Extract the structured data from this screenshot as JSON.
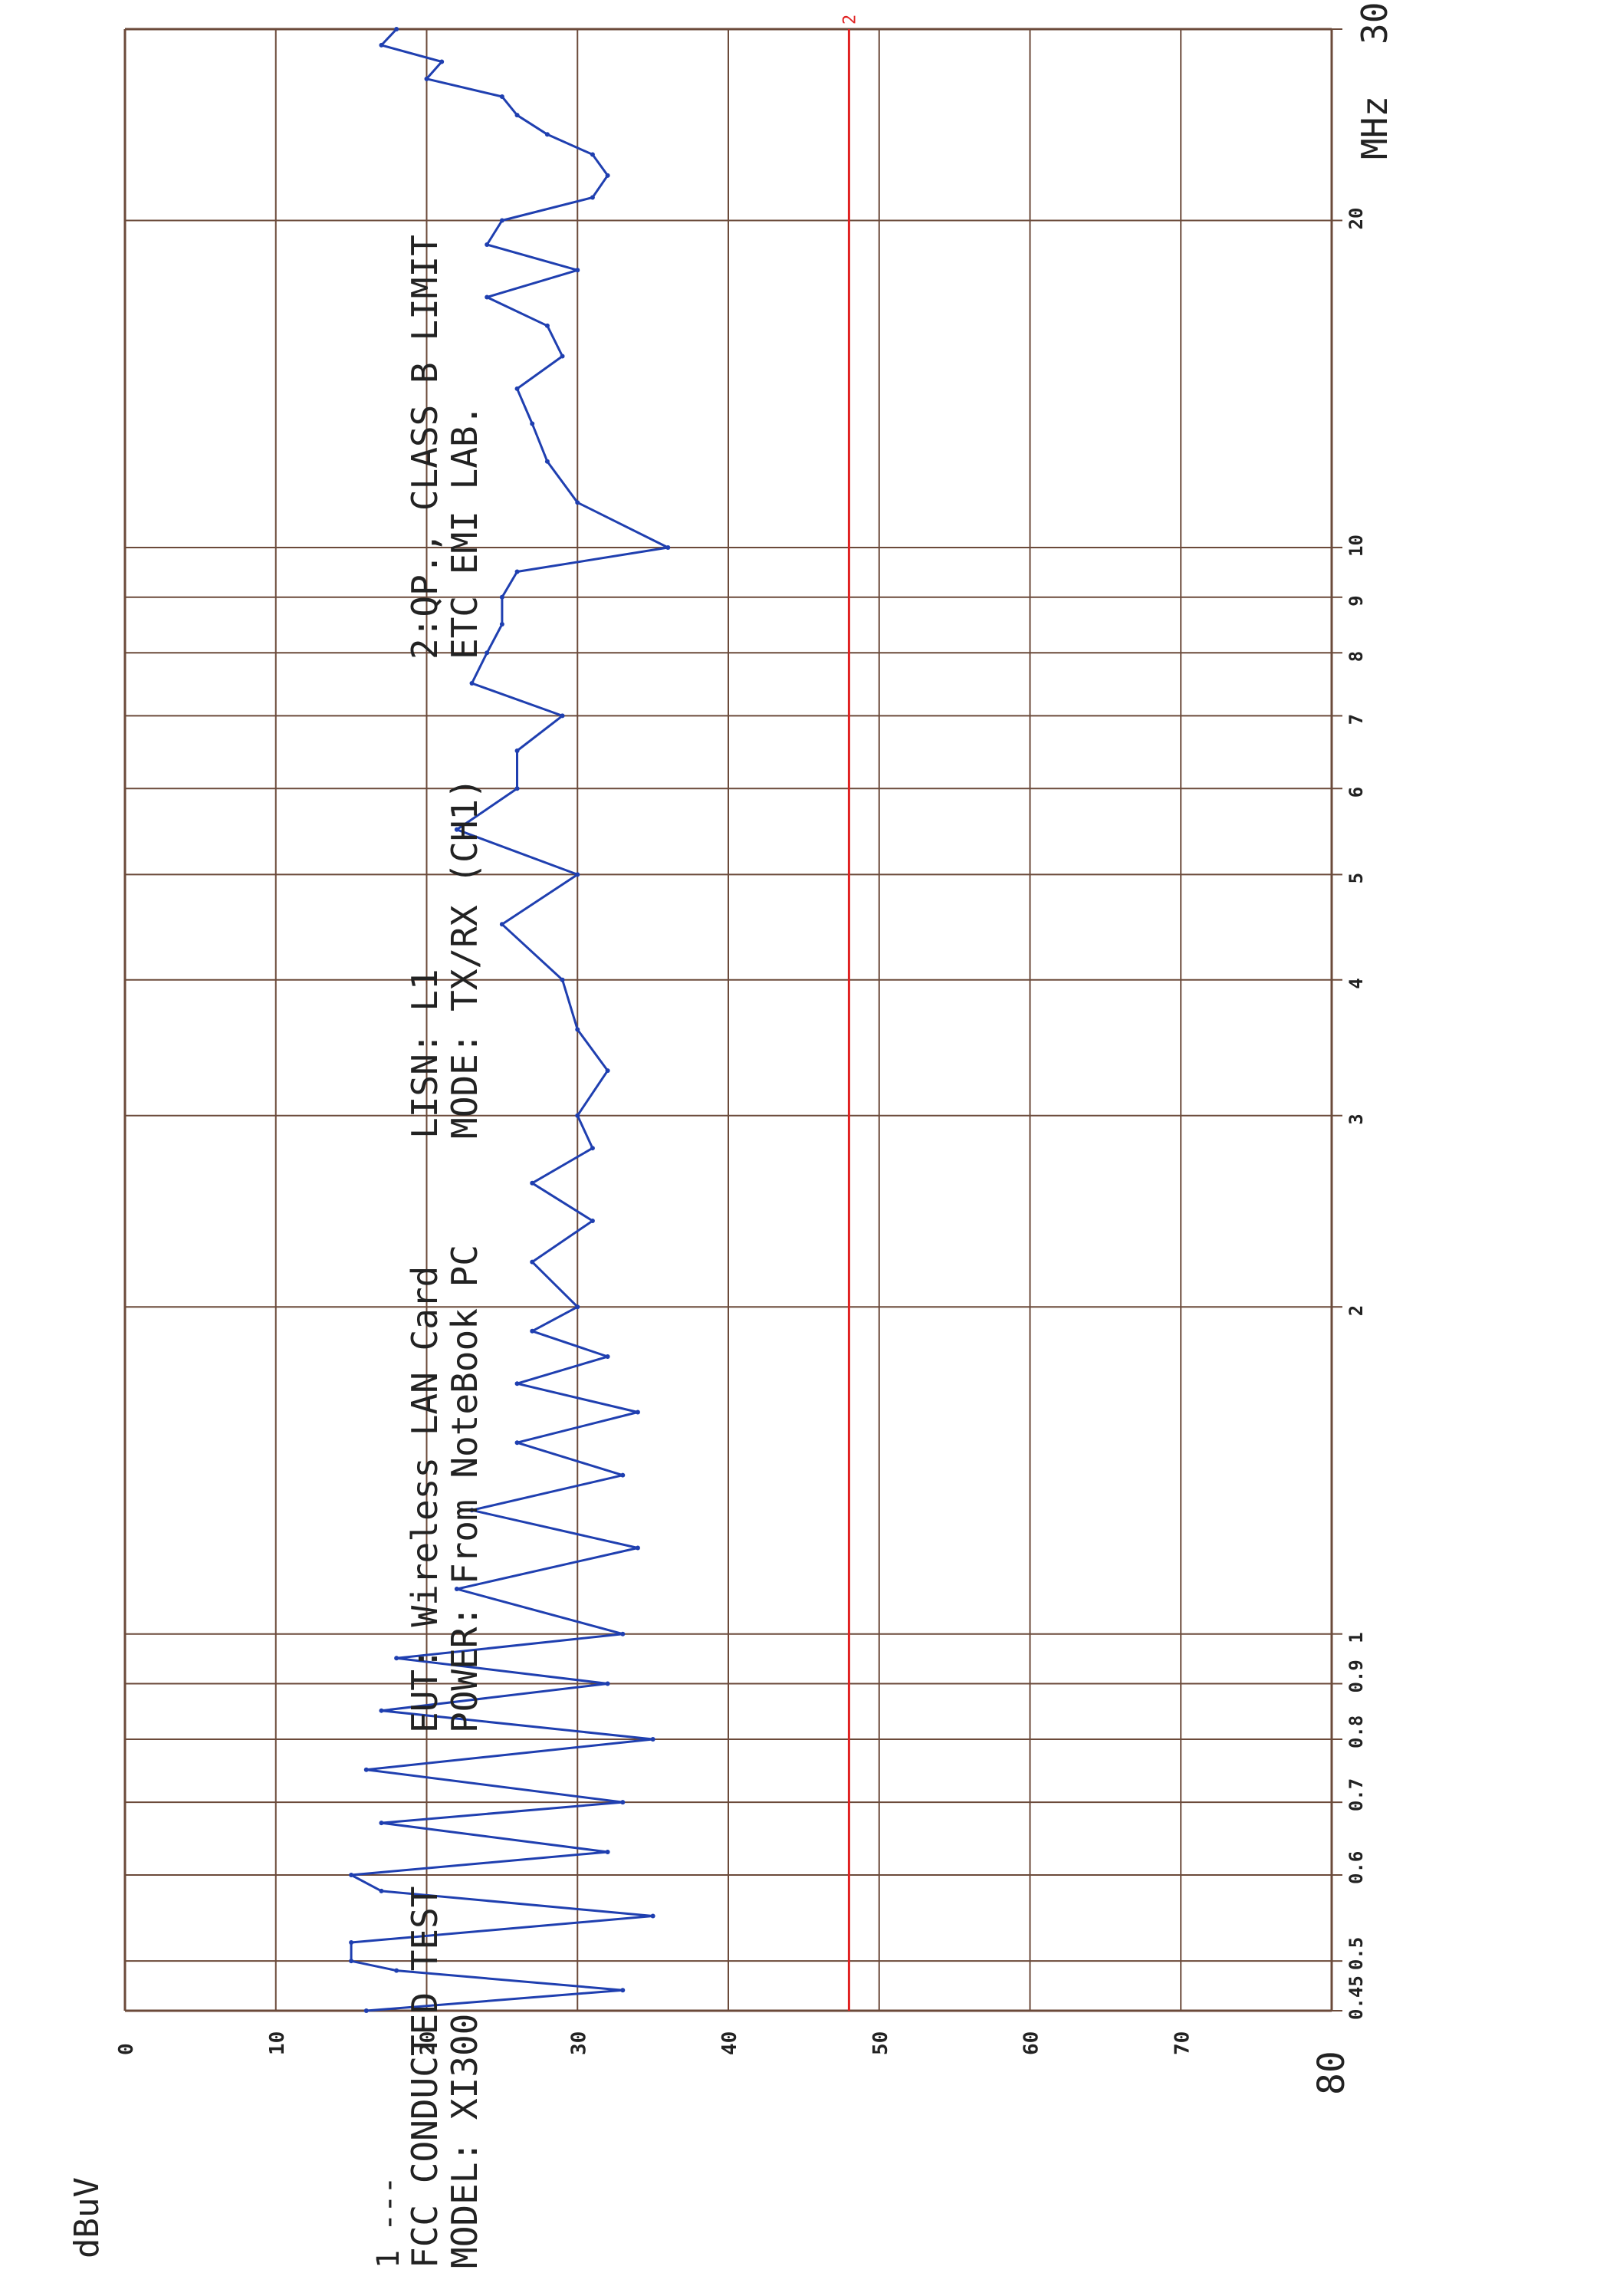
{
  "chart_data": {
    "type": "line",
    "ylabel": "dBuV",
    "ylim": [
      0,
      80
    ],
    "xlim": [
      0.45,
      30
    ],
    "x_scale": "log",
    "x_unit": "MHz",
    "y_ticks": [
      "0",
      "10",
      "20",
      "30",
      "40",
      "50",
      "60",
      "70",
      "80"
    ],
    "x_ticks": [
      "0.45",
      "0.5",
      "0.6",
      "0.7",
      "0.8",
      "0.9",
      "1",
      "2",
      "3",
      "4",
      "5",
      "6",
      "7",
      "8",
      "9",
      "10",
      "20",
      "30"
    ],
    "x_tick_values": [
      0.45,
      0.5,
      0.6,
      0.7,
      0.8,
      0.9,
      1,
      2,
      3,
      4,
      5,
      6,
      7,
      8,
      9,
      10,
      20,
      30
    ],
    "grid": true,
    "limit_line": {
      "value": 48,
      "marker": "2",
      "color": "#e02020"
    },
    "trace_color": "#1f3fb0",
    "series": [
      {
        "x": [
          0.45,
          0.47,
          0.49,
          0.5,
          0.52,
          0.55,
          0.58,
          0.6,
          0.63,
          0.67,
          0.7,
          0.75,
          0.8,
          0.85,
          0.9,
          0.95,
          1.0,
          1.1,
          1.2,
          1.3,
          1.4,
          1.5,
          1.6,
          1.7,
          1.8,
          1.9,
          2.0,
          2.2,
          2.4,
          2.6,
          2.8,
          3.0,
          3.3,
          3.6,
          4.0,
          4.5,
          5.0,
          5.5,
          6.0,
          6.5,
          7.0,
          7.5,
          8.0,
          8.5,
          9.0,
          9.5,
          10.0,
          11.0,
          12.0,
          13.0,
          14.0,
          15.0,
          16.0,
          17.0,
          18.0,
          19.0,
          20.0,
          21.0,
          22.0,
          23.0,
          24.0,
          25.0,
          26.0,
          27.0,
          28.0,
          29.0,
          30.0
        ],
        "y": [
          16,
          33,
          18,
          15,
          15,
          35,
          17,
          15,
          32,
          17,
          33,
          16,
          35,
          17,
          32,
          18,
          33,
          22,
          34,
          23,
          33,
          26,
          34,
          26,
          32,
          27,
          30,
          27,
          31,
          27,
          31,
          30,
          32,
          30,
          29,
          25,
          30,
          22,
          26,
          26,
          29,
          23,
          24,
          25,
          25,
          26,
          36,
          30,
          28,
          27,
          26,
          29,
          28,
          24,
          30,
          24,
          25,
          31,
          32,
          31,
          28,
          26,
          25,
          20,
          21,
          17,
          18
        ]
      }
    ]
  },
  "info": {
    "line1": {
      "col1": "FCC CONDUCTED TEST",
      "col2": "EUT: Wireless LAN Card",
      "col3": "LISN: L1",
      "col4": "2:QP., CLASS B LIMIT"
    },
    "line2": {
      "col1": "MODEL: XI300",
      "col2": "POWER: From NoteBook PC",
      "col3": "MODE: TX/RX (CH1)",
      "col4": "ETC EMI LAB."
    },
    "legend_mark": "1 ---"
  }
}
